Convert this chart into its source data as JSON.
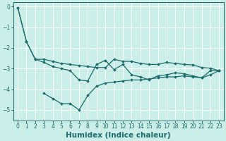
{
  "xlabel": "Humidex (Indice chaleur)",
  "bg_color": "#cceee8",
  "line_color": "#1a6b6b",
  "grid_color": "#ffffff",
  "xlim": [
    -0.5,
    23.5
  ],
  "ylim": [
    -5.5,
    0.2
  ],
  "yticks": [
    0,
    -1,
    -2,
    -3,
    -4,
    -5
  ],
  "xticks": [
    0,
    1,
    2,
    3,
    4,
    5,
    6,
    7,
    8,
    9,
    10,
    11,
    12,
    13,
    14,
    15,
    16,
    17,
    18,
    19,
    20,
    21,
    22,
    23
  ],
  "curve1_x": [
    0,
    1,
    2,
    3,
    4,
    5,
    6,
    7,
    8,
    9,
    10,
    11,
    12,
    13,
    14,
    15,
    16,
    17,
    18,
    19,
    20,
    21,
    22,
    23
  ],
  "curve1_y": [
    -0.05,
    -1.7,
    -2.55,
    -2.55,
    -2.65,
    -2.75,
    -2.8,
    -2.85,
    -2.9,
    -2.95,
    -2.95,
    -2.55,
    -2.65,
    -2.65,
    -2.75,
    -2.8,
    -2.8,
    -2.7,
    -2.75,
    -2.8,
    -2.82,
    -2.95,
    -2.98,
    -3.1
  ],
  "curve2_x": [
    0,
    1,
    2,
    3,
    4,
    5,
    6,
    7,
    8,
    9,
    10,
    11,
    12,
    13,
    14,
    15,
    16,
    17,
    18,
    19,
    20,
    21,
    22,
    23
  ],
  "curve2_y": [
    -0.05,
    -1.7,
    -2.55,
    -2.7,
    -2.9,
    -3.0,
    -3.1,
    -3.55,
    -3.6,
    -2.8,
    -2.6,
    -3.05,
    -2.8,
    -3.3,
    -3.4,
    -3.55,
    -3.35,
    -3.3,
    -3.2,
    -3.25,
    -3.35,
    -3.45,
    -3.1,
    -3.1
  ],
  "curve3_x": [
    3,
    4,
    5,
    6,
    7,
    8,
    9,
    10,
    11,
    12,
    13,
    14,
    15,
    16,
    17,
    18,
    19,
    20,
    21,
    22,
    23
  ],
  "curve3_y": [
    -4.2,
    -4.45,
    -4.7,
    -4.7,
    -5.0,
    -4.3,
    -3.85,
    -3.7,
    -3.65,
    -3.6,
    -3.55,
    -3.55,
    -3.5,
    -3.45,
    -3.4,
    -3.4,
    -3.35,
    -3.4,
    -3.45,
    -3.3,
    -3.1
  ],
  "marker": "D",
  "markersize": 1.8,
  "linewidth": 0.9,
  "tick_fontsize": 5.5,
  "xlabel_fontsize": 7.5
}
